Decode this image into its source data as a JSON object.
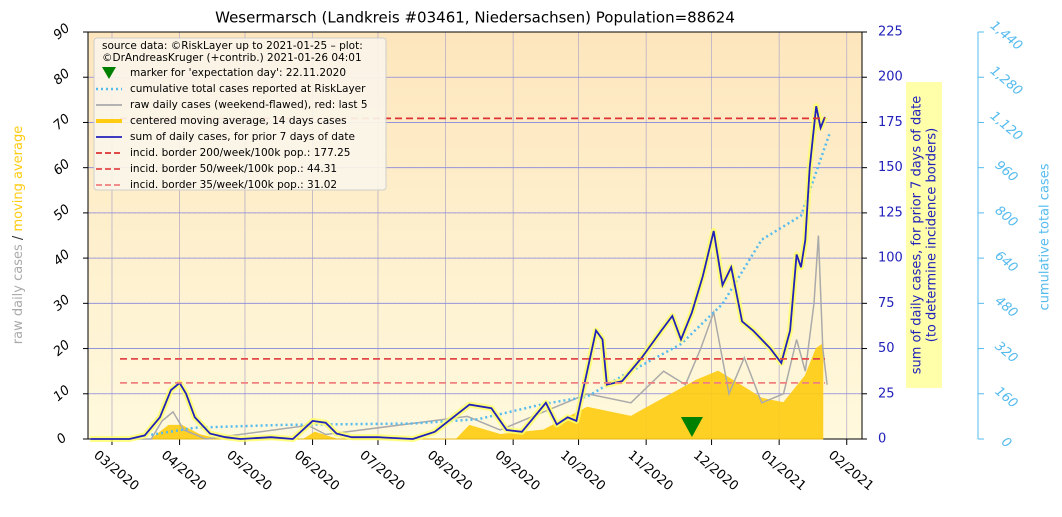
{
  "chart_data": {
    "type": "line",
    "title": "Wesermarsch (Landkreis #03461, Niedersachsen) Population=88624",
    "xlim": [
      18311,
      18666
    ],
    "xticks": [
      {
        "value": 18322,
        "label": "03/2020"
      },
      {
        "value": 18353,
        "label": "04/2020"
      },
      {
        "value": 18383,
        "label": "05/2020"
      },
      {
        "value": 18414,
        "label": "06/2020"
      },
      {
        "value": 18444,
        "label": "07/2020"
      },
      {
        "value": 18475,
        "label": "08/2020"
      },
      {
        "value": 18506,
        "label": "09/2020"
      },
      {
        "value": 18536,
        "label": "10/2020"
      },
      {
        "value": 18567,
        "label": "11/2020"
      },
      {
        "value": 18597,
        "label": "12/2020"
      },
      {
        "value": 18628,
        "label": "01/2021"
      },
      {
        "value": 18659,
        "label": "02/2021"
      }
    ],
    "ylim": [
      0,
      90
    ],
    "yticks": [
      0,
      10,
      20,
      30,
      40,
      50,
      60,
      70,
      80,
      90
    ],
    "y2lim": [
      0,
      225
    ],
    "y2ticks": [
      0,
      25,
      50,
      75,
      100,
      125,
      150,
      175,
      200,
      225
    ],
    "y3lim": [
      0,
      1440
    ],
    "y3ticks": [
      0,
      160,
      320,
      480,
      640,
      800,
      960,
      {
        "value": 1120,
        "label": "1,120"
      },
      {
        "value": 1280,
        "label": "1,280"
      },
      {
        "value": 1440,
        "label": "1,440"
      }
    ],
    "ylabel_raw": "raw daily cases",
    "ylabel_sep": "/",
    "ylabel_avg": "moving average",
    "y2label": [
      "sum of daily cases, for prior 7 days of date",
      "(to determine incidence borders)"
    ],
    "y3label": "cumulative total cases",
    "grid": true,
    "legend_title": [
      "source data: ©RiskLayer up to 2021-01-25 – plot:",
      "©DrAndreasKruger (+contrib.) 2021-01-26 04:01"
    ],
    "marker": {
      "name": "marker for 'expectation day': 22.11.2020",
      "x": 18588,
      "color": "#008000"
    },
    "series": [
      {
        "name": "cumulative total cases reported at RiskLayer",
        "color": "#55bbee",
        "style": "dotted",
        "axis": "y3",
        "x": [
          18340,
          18360,
          18400,
          18460,
          18490,
          18520,
          18540,
          18556,
          18583,
          18602,
          18620,
          18638,
          18651
        ],
        "values": [
          15,
          40,
          50,
          55,
          70,
          124,
          150,
          223,
          336,
          478,
          705,
          790,
          1078
        ]
      },
      {
        "name": "raw daily cases (weekend-flawed), red: last 5",
        "color": "#aaaaaa",
        "style": "line",
        "axis": "y",
        "x": [
          18312,
          18340,
          18345,
          18350,
          18355,
          18365,
          18412,
          18420,
          18485,
          18500,
          18540,
          18560,
          18575,
          18585,
          18592,
          18598,
          18605,
          18612,
          18620,
          18630,
          18636,
          18640,
          18644,
          18646,
          18648,
          18650
        ],
        "values": [
          0,
          0,
          4,
          6,
          2,
          0,
          3,
          1,
          5,
          2,
          10,
          8,
          15,
          12,
          20,
          28,
          10,
          18,
          8,
          10,
          22,
          15,
          30,
          45,
          20,
          12
        ]
      },
      {
        "name": "centered moving average, 14 days cases",
        "color": "#ffcc11",
        "style": "area",
        "axis": "y",
        "x": [
          18312,
          18340,
          18348,
          18354,
          18362,
          18370,
          18410,
          18415,
          18425,
          18480,
          18486,
          18500,
          18520,
          18540,
          18550,
          18560,
          18575,
          18590,
          18600,
          18610,
          18620,
          18630,
          18640,
          18645,
          18648
        ],
        "values": [
          0,
          0,
          3,
          3,
          1,
          0,
          0,
          1.5,
          0,
          0,
          3,
          1,
          2,
          7,
          6,
          5,
          9,
          13,
          15,
          12,
          9,
          8,
          14,
          20,
          21
        ]
      },
      {
        "name": "sum of daily cases, for prior 7 days of date",
        "color": "#2222bb",
        "style": "glow",
        "axis": "y2",
        "x": [
          18312,
          18330,
          18337,
          18344,
          18349,
          18353,
          18356,
          18360,
          18367,
          18374,
          18381,
          18395,
          18405,
          18414,
          18420,
          18425,
          18432,
          18444,
          18460,
          18470,
          18486,
          18496,
          18503,
          18510,
          18521,
          18526,
          18531,
          18535,
          18544,
          18547,
          18549,
          18556,
          18565,
          18574,
          18579,
          18583,
          18588,
          18593,
          18598,
          18602,
          18606,
          18611,
          18616,
          18620,
          18624,
          18629,
          18633,
          18636,
          18638,
          18640,
          18642,
          18645,
          18647,
          18649
        ],
        "values": [
          0,
          0,
          2,
          12,
          27,
          31,
          25,
          12,
          3,
          1,
          0,
          1,
          0,
          10,
          9,
          3,
          1,
          1,
          0,
          4,
          19,
          17,
          5,
          4,
          20,
          8,
          12,
          10,
          60,
          55,
          30,
          32,
          45,
          60,
          68,
          55,
          70,
          90,
          115,
          85,
          95,
          65,
          60,
          55,
          50,
          42,
          60,
          102,
          95,
          110,
          150,
          184,
          172,
          178
        ]
      }
    ],
    "hlines": [
      {
        "name": "incid. border 200/week/100k pop.: 177.25",
        "value": 177.25,
        "color": "#dd3333",
        "axis": "y2"
      },
      {
        "name": "incid. border 50/week/100k pop.: 44.31",
        "value": 44.31,
        "color": "#e24848",
        "axis": "y2"
      },
      {
        "name": "incid. border 35/week/100k pop.: 31.02",
        "value": 31.02,
        "color": "#f08080",
        "axis": "y2"
      }
    ]
  }
}
